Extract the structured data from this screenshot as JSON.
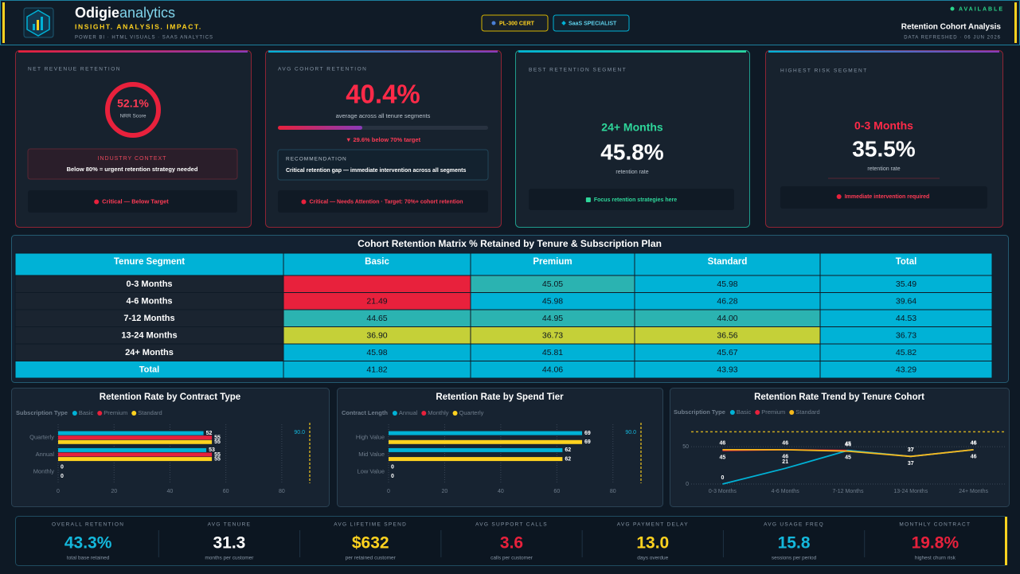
{
  "header": {
    "brand": "Odigie",
    "brand_suffix": "analytics",
    "tagline": "INSIGHT. ANALYSIS. IMPACT.",
    "subline": "POWER BI · HTML VISUALS · SAAS ANALYTICS",
    "badges": [
      "PL-300 CERT",
      "SaaS SPECIALIST"
    ],
    "status": "AVAILABLE",
    "report_title": "Retention Cohort Analysis",
    "refreshed": "DATA REFRESHED · 06 JUN 2026"
  },
  "cards": [
    {
      "label": "NET REVENUE RETENTION",
      "value": "52.1%",
      "value_caption": "NRR Score",
      "note_title": "INDUSTRY CONTEXT",
      "note_text": "Below 80% = urgent retention strategy needed",
      "status": "Critical — Below Target"
    },
    {
      "label": "AVG COHORT RETENTION",
      "value": "40.4%",
      "value_caption": "average across all tenure segments",
      "delta": "▼ 29.6% below 70% target",
      "note_title": "RECOMMENDATION",
      "note_text": "Critical retention gap — immediate intervention across all segments",
      "status": "Critical — Needs Attention · Target: 70%+ cohort retention"
    },
    {
      "label": "BEST RETENTION SEGMENT",
      "segment": "24+ Months",
      "value": "45.8%",
      "value_caption": "retention rate",
      "status": "Focus retention strategies here"
    },
    {
      "label": "HIGHEST RISK SEGMENT",
      "segment": "0-3 Months",
      "value": "35.5%",
      "value_caption": "retention rate",
      "status": "Immediate intervention required"
    }
  ],
  "table": {
    "title": "Cohort Retention Matrix % Retained by Tenure & Subscription Plan",
    "columns": [
      "Tenure Segment",
      "Basic",
      "Premium",
      "Standard",
      "Total"
    ],
    "rows": [
      [
        "0-3 Months",
        null,
        "45.05",
        "45.98",
        "35.49"
      ],
      [
        "4-6 Months",
        "21.49",
        "45.98",
        "46.28",
        "39.64"
      ],
      [
        "7-12 Months",
        "44.65",
        "44.95",
        "44.00",
        "44.53"
      ],
      [
        "13-24 Months",
        "36.90",
        "36.73",
        "36.56",
        "36.73"
      ],
      [
        "24+ Months",
        "45.98",
        "45.81",
        "45.67",
        "45.82"
      ],
      [
        "Total",
        "41.82",
        "44.06",
        "43.93",
        "43.29"
      ]
    ],
    "cell_colors": [
      [
        "#1a2430",
        "#e8213c",
        "#2bb3b1",
        "#00b2d6",
        "#00b2d6"
      ],
      [
        "#1a2430",
        "#e8213c",
        "#00b2d6",
        "#00b2d6",
        "#00b2d6"
      ],
      [
        "#1a2430",
        "#2bb3b1",
        "#2bb3b1",
        "#2bb3b1",
        "#00b2d6"
      ],
      [
        "#1a2430",
        "#c5d038",
        "#c5d038",
        "#c5d038",
        "#00b2d6"
      ],
      [
        "#1a2430",
        "#00b2d6",
        "#00b2d6",
        "#00b2d6",
        "#00b2d6"
      ],
      [
        "#00b2d6",
        "#00b2d6",
        "#00b2d6",
        "#00b2d6",
        "#00b2d6"
      ]
    ]
  },
  "chart_data": [
    {
      "type": "hbar",
      "title": "Retention Rate by Contract Type",
      "legend_title": "Subscription Type",
      "categories": [
        "Quarterly",
        "Annual",
        "Monthly"
      ],
      "series": [
        {
          "name": "Basic",
          "color": "#00b2d6",
          "values": [
            52,
            53,
            0
          ]
        },
        {
          "name": "Premium",
          "color": "#e8213c",
          "values": [
            55,
            55,
            null
          ]
        },
        {
          "name": "Standard",
          "color": "#ffd21f",
          "values": [
            55,
            55,
            0
          ]
        }
      ],
      "xlim": [
        0,
        90
      ],
      "xticks": [
        0,
        20,
        40,
        60,
        80
      ],
      "reference_line": {
        "value": 90,
        "label": "90.0"
      }
    },
    {
      "type": "hbar",
      "title": "Retention Rate by Spend Tier",
      "legend_title": "Contract Length",
      "categories": [
        "High Value",
        "Mid Value",
        "Low Value"
      ],
      "series": [
        {
          "name": "Annual",
          "color": "#00b2d6",
          "values": [
            69,
            62,
            0
          ]
        },
        {
          "name": "Monthly",
          "color": "#e8213c",
          "values": [
            null,
            null,
            null
          ]
        },
        {
          "name": "Quarterly",
          "color": "#ffd21f",
          "values": [
            69,
            62,
            0
          ]
        }
      ],
      "xlim": [
        0,
        90
      ],
      "xticks": [
        0,
        20,
        40,
        60,
        80
      ],
      "reference_line": {
        "value": 90,
        "label": "90.0"
      }
    },
    {
      "type": "line",
      "title": "Retention Rate Trend by Tenure Cohort",
      "legend_title": "Subscription Type",
      "categories": [
        "0-3 Months",
        "4-6 Months",
        "7-12 Months",
        "13-24 Months",
        "24+ Months"
      ],
      "series": [
        {
          "name": "Basic",
          "color": "#00b2d6",
          "values": [
            0,
            21,
            45,
            37,
            46
          ]
        },
        {
          "name": "Premium",
          "color": "#e8213c",
          "values": [
            45,
            46,
            45,
            37,
            46
          ]
        },
        {
          "name": "Standard",
          "color": "#f5b91c",
          "values": [
            46,
            46,
            44,
            37,
            46
          ]
        }
      ],
      "ylim": [
        0,
        80
      ],
      "yticks": [
        0,
        50
      ],
      "reference_line": 70
    }
  ],
  "kpis": [
    {
      "label": "OVERALL RETENTION",
      "value": "43.3%",
      "caption": "total base retained",
      "color": "#14b8dc"
    },
    {
      "label": "AVG TENURE",
      "value": "31.3",
      "caption": "months per customer",
      "color": "#ffffff"
    },
    {
      "label": "AVG LIFETIME SPEND",
      "value": "$632",
      "caption": "per retained customer",
      "color": "#ffd21f"
    },
    {
      "label": "AVG SUPPORT CALLS",
      "value": "3.6",
      "caption": "calls per customer",
      "color": "#e8213c"
    },
    {
      "label": "AVG PAYMENT DELAY",
      "value": "13.0",
      "caption": "days overdue",
      "color": "#ffd21f"
    },
    {
      "label": "AVG USAGE FREQ",
      "value": "15.8",
      "caption": "sessions per period",
      "color": "#14b8dc"
    },
    {
      "label": "MONTHLY CONTRACT",
      "value": "19.8%",
      "caption": "highest churn risk",
      "color": "#e8213c"
    }
  ]
}
